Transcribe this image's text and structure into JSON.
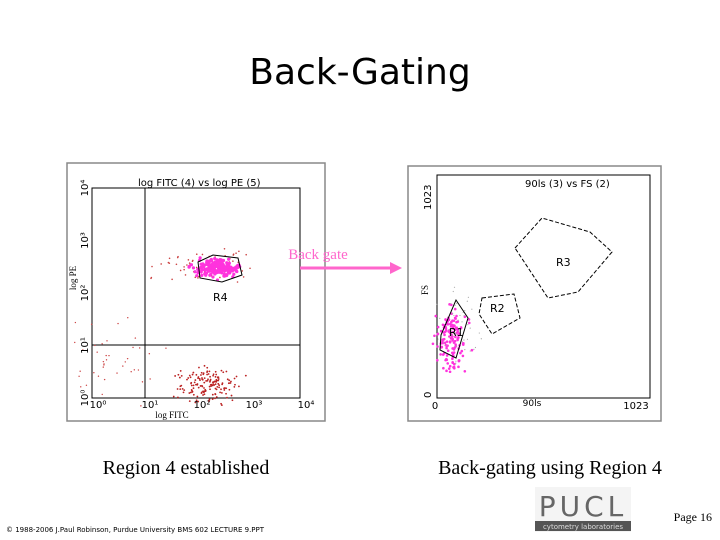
{
  "header": {
    "title": "Back-Gating"
  },
  "left_plot": {
    "heading": "log FITC (4) vs log PE (5)",
    "y_label": "log PE",
    "x_label": "log FITC",
    "y_ticks": [
      "10⁰",
      "10¹",
      "10²",
      "10³",
      "10⁴"
    ],
    "x_ticks": [
      "10⁰",
      "10¹",
      "10²",
      "10³",
      "10⁴"
    ],
    "region": "R4",
    "caption": "Region 4 established"
  },
  "arrow": {
    "label": "Back gate"
  },
  "right_plot": {
    "heading": "90ls (3) vs FS (2)",
    "y_label": "FS",
    "x_label": "90ls",
    "y_ticks": [
      "0",
      "1023"
    ],
    "x_ticks": [
      "0",
      "1023"
    ],
    "regions": [
      "R3",
      "R2",
      "R1"
    ],
    "caption": "Back-gating using Region 4"
  },
  "footer": {
    "copyright": "© 1988-2006 J.Paul Robinson, Purdue University BMS 602 LECTURE 9.PPT",
    "page": "Page 16",
    "logo": "PUCL",
    "logo_sub": "cytometry laboratories"
  }
}
